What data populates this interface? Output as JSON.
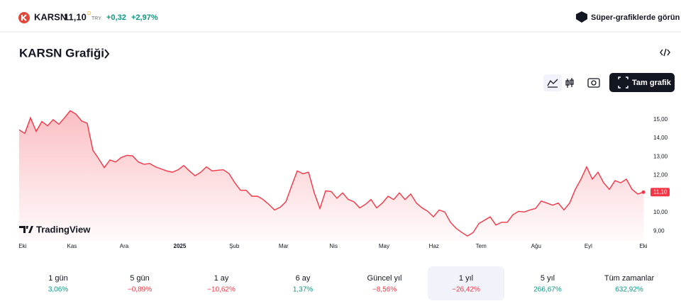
{
  "header": {
    "symbol": "KARSN",
    "price": "11,10",
    "flag": "D",
    "currency": "TRY",
    "change": "+0,32",
    "change_pct": "+2,97%",
    "cta": "Süper-grafiklerde görün"
  },
  "title": "KARSN Grafiği",
  "toolbar": {
    "button": "Tam grafik"
  },
  "brand": "TradingView",
  "chart_data": {
    "type": "area",
    "color": "#f23645",
    "series": [
      {
        "name": "KARSN",
        "color": "#f23645",
        "values": [
          14.45,
          14.26,
          15.1,
          14.37,
          14.9,
          14.67,
          15.0,
          14.75,
          15.1,
          15.48,
          15.3,
          14.93,
          14.8,
          13.35,
          12.9,
          12.42,
          12.83,
          12.72,
          12.97,
          13.08,
          13.05,
          12.72,
          12.6,
          12.64,
          12.46,
          12.35,
          12.24,
          12.17,
          12.3,
          12.53,
          12.24,
          11.98,
          12.17,
          12.46,
          12.24,
          12.28,
          12.3,
          12.09,
          11.6,
          11.2,
          11.2,
          10.88,
          10.88,
          10.7,
          10.44,
          10.14,
          10.29,
          10.58,
          11.43,
          12.24,
          12.09,
          12.17,
          11.06,
          10.22,
          11.17,
          11.13,
          10.77,
          11.06,
          10.7,
          10.58,
          10.25,
          10.44,
          10.7,
          10.25,
          10.51,
          10.88,
          10.7,
          11.06,
          10.7,
          11.0,
          10.51,
          10.25,
          10.07,
          9.77,
          10.14,
          10.03,
          9.48,
          9.15,
          8.93,
          8.74,
          8.93,
          9.41,
          9.59,
          9.77,
          9.33,
          9.48,
          9.48,
          9.88,
          10.07,
          10.03,
          10.14,
          10.22,
          10.62,
          10.51,
          10.4,
          10.51,
          10.14,
          10.51,
          11.25,
          11.8,
          12.46,
          11.8,
          12.17,
          11.6,
          11.25,
          11.72,
          11.6,
          11.8,
          11.25,
          11.0,
          11.1
        ]
      }
    ],
    "price_label": "11,10",
    "xlim": [
      0,
      110
    ],
    "xticks": [
      {
        "value": 0.6,
        "label": "Eki"
      },
      {
        "value": 9.3,
        "label": "Kas"
      },
      {
        "value": 18.5,
        "label": "Ara"
      },
      {
        "value": 28.3,
        "label": "2025"
      },
      {
        "value": 37.9,
        "label": "Şub"
      },
      {
        "value": 46.6,
        "label": "Mar"
      },
      {
        "value": 55.4,
        "label": "Nis"
      },
      {
        "value": 64.3,
        "label": "May"
      },
      {
        "value": 73.1,
        "label": "Haz"
      },
      {
        "value": 81.4,
        "label": "Tem"
      },
      {
        "value": 91.1,
        "label": "Ağu"
      },
      {
        "value": 100.3,
        "label": "Eyl"
      },
      {
        "value": 110,
        "label": "Eki"
      }
    ],
    "ylim": [
      8.48,
      16.1
    ],
    "yticks": [
      {
        "value": 9,
        "label": "9,00"
      },
      {
        "value": 10,
        "label": "10,00"
      },
      {
        "value": 11,
        "label": "11,00"
      },
      {
        "value": 12,
        "label": "12,00"
      },
      {
        "value": 13,
        "label": "13,00"
      },
      {
        "value": 14,
        "label": "14,00"
      },
      {
        "value": 15,
        "label": "15,00"
      }
    ]
  },
  "periods": {
    "selected": 5,
    "items": [
      {
        "label": "1 gün",
        "change": "3,06%"
      },
      {
        "label": "5 gün",
        "change": "−0,89%"
      },
      {
        "label": "1 ay",
        "change": "−10,62%"
      },
      {
        "label": "6 ay",
        "change": "1,37%"
      },
      {
        "label": "Güncel yıl",
        "change": "−8,56%"
      },
      {
        "label": "1 yıl",
        "change": "−26,42%"
      },
      {
        "label": "5 yıl",
        "change": "266,67%"
      },
      {
        "label": "Tüm zamanlar",
        "change": "632,92%"
      }
    ]
  }
}
